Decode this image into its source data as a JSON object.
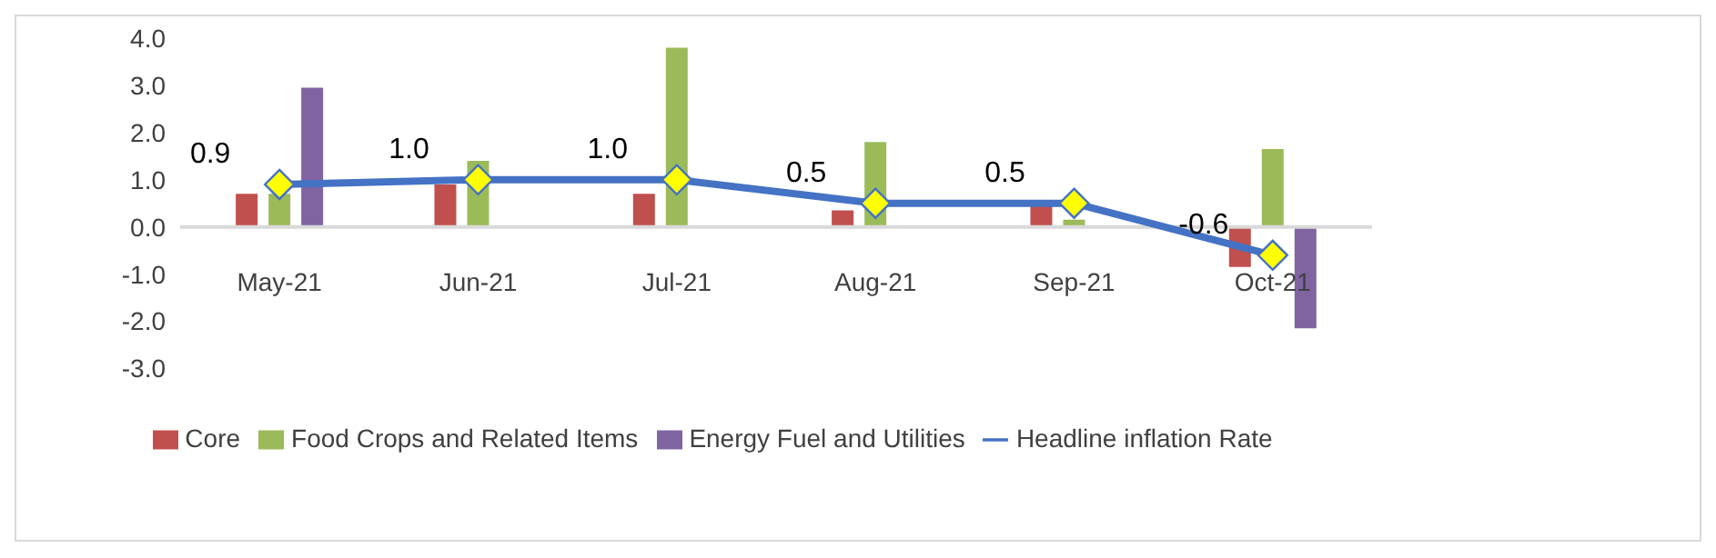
{
  "chart_data": {
    "type": "bar",
    "categories": [
      "May-21",
      "Jun-21",
      "Jul-21",
      "Aug-21",
      "Sep-21",
      "Oct-21"
    ],
    "series": [
      {
        "name": "Core",
        "color": "#c0504d",
        "values": [
          0.7,
          0.9,
          0.7,
          0.35,
          0.55,
          -0.85
        ]
      },
      {
        "name": "Food Crops and Related Items",
        "color": "#9bbb59",
        "values": [
          0.7,
          1.4,
          3.8,
          1.8,
          0.15,
          1.65
        ]
      },
      {
        "name": "Energy Fuel and Utilities",
        "color": "#8064a2",
        "values": [
          2.95,
          0,
          0,
          0,
          0,
          -2.15
        ]
      },
      {
        "name": "Headline inflation Rate",
        "type": "line",
        "color": "#4472c4",
        "marker": "diamond",
        "values": [
          0.9,
          1.0,
          1.0,
          0.5,
          0.5,
          -0.6
        ],
        "value_labels": [
          "0.9",
          "1.0",
          "1.0",
          "0.5",
          "0.5",
          "-0.6"
        ]
      }
    ],
    "ylim": [
      -3,
      4
    ],
    "yticks": [
      {
        "value": -3,
        "label": "-3.0"
      },
      {
        "value": -2,
        "label": "-2.0"
      },
      {
        "value": -1,
        "label": "-1.0"
      },
      {
        "value": 0,
        "label": "0.0"
      },
      {
        "value": 1,
        "label": "1.0"
      },
      {
        "value": 2,
        "label": "2.0"
      },
      {
        "value": 3,
        "label": "3.0"
      },
      {
        "value": 4,
        "label": "4.0"
      }
    ],
    "grid": false,
    "legend": "bottom"
  }
}
